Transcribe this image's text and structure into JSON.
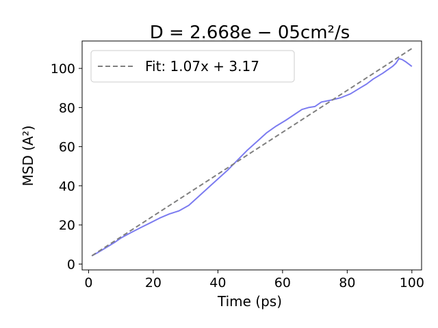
{
  "chart_data": {
    "type": "line",
    "title": "D = 2.668e − 05cm²/s",
    "xlabel": "Time (ps)",
    "ylabel": "MSD (A²)",
    "xlim": [
      -2,
      103
    ],
    "ylim": [
      -3,
      114
    ],
    "x_ticks": [
      0,
      20,
      40,
      60,
      80,
      100
    ],
    "y_ticks": [
      0,
      20,
      40,
      60,
      80,
      100
    ],
    "grid": false,
    "legend_position": "top-left",
    "series": [
      {
        "name": "",
        "color": "#7b7bf0",
        "style": "solid",
        "x": [
          1,
          3,
          5,
          8,
          10,
          13,
          16,
          19,
          22,
          25,
          28,
          31,
          34,
          37,
          40,
          43,
          46,
          49,
          52,
          55,
          58,
          61,
          64,
          66,
          68,
          70,
          72,
          75,
          78,
          81,
          84,
          86,
          88,
          91,
          94,
          95,
          96,
          97,
          98,
          100
        ],
        "y": [
          4.2,
          6.0,
          8.0,
          11.0,
          13.3,
          16.0,
          18.5,
          21.0,
          23.5,
          25.6,
          27.2,
          30.0,
          34.5,
          39.0,
          43.5,
          48.0,
          53.0,
          58.0,
          62.5,
          67.0,
          70.5,
          73.5,
          76.8,
          79.0,
          80.0,
          80.5,
          82.8,
          83.8,
          85.0,
          87.0,
          90.0,
          92.0,
          94.5,
          97.5,
          101.0,
          102.5,
          105.0,
          104.5,
          103.5,
          101.0
        ]
      },
      {
        "name": "Fit: 1.07x + 3.17",
        "color": "#7f7f7f",
        "style": "dashed",
        "x": [
          1,
          100
        ],
        "y": [
          4.24,
          110.17
        ]
      }
    ]
  }
}
